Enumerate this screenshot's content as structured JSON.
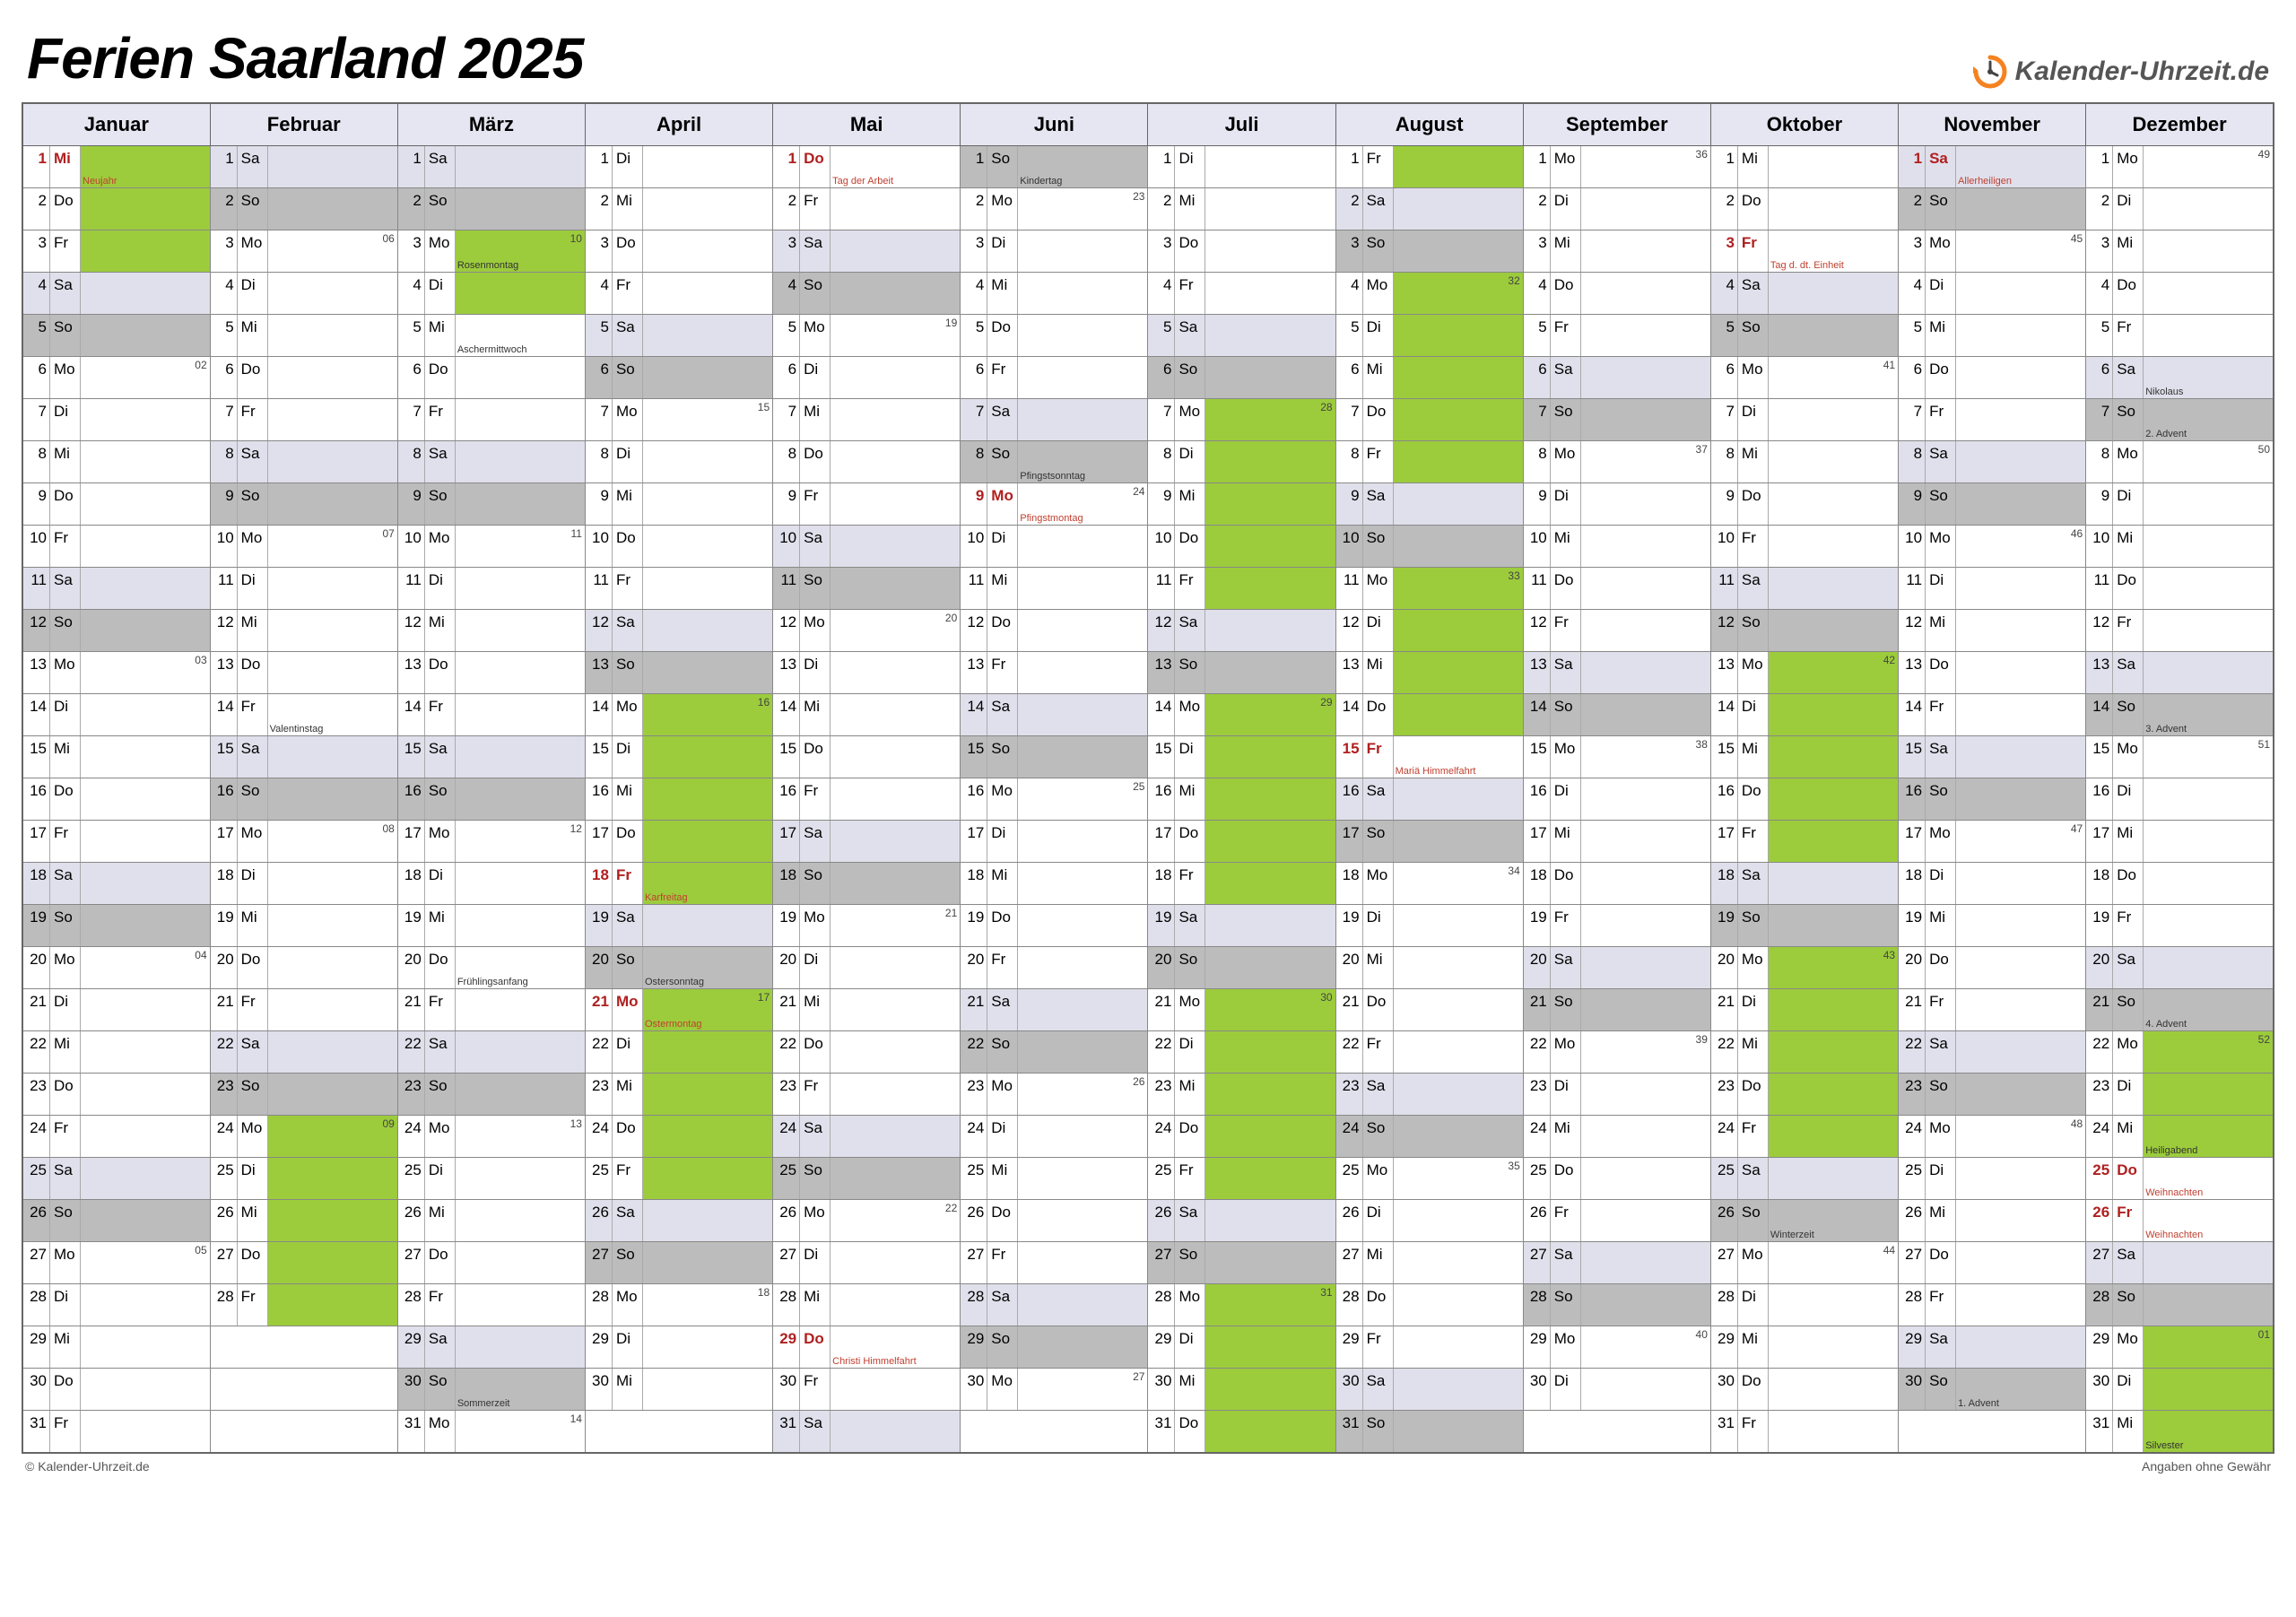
{
  "title": "Ferien Saarland 2025",
  "logo_text": "Kalender-Uhrzeit.de",
  "footer_left": "© Kalender-Uhrzeit.de",
  "footer_right": "Angaben ohne Gewähr",
  "colors": {
    "holiday_green": "#9ccc3c",
    "sunday_grey": "#bcbcbc",
    "saturday_lavender": "#e0e0ec",
    "header_bg": "#e6e6f2",
    "public_holiday_text": "#b02020",
    "note_red": "#c04030",
    "border": "#666666"
  },
  "months": [
    "Januar",
    "Februar",
    "März",
    "April",
    "Mai",
    "Juni",
    "Juli",
    "August",
    "September",
    "Oktober",
    "November",
    "Dezember"
  ],
  "days_in_month": [
    31,
    28,
    31,
    30,
    31,
    30,
    31,
    31,
    30,
    31,
    30,
    31
  ],
  "first_weekday": [
    3,
    6,
    6,
    2,
    4,
    7,
    2,
    5,
    1,
    3,
    6,
    1
  ],
  "weekday_abbr": {
    "1": "Mo",
    "2": "Di",
    "3": "Mi",
    "4": "Do",
    "5": "Fr",
    "6": "Sa",
    "7": "So"
  },
  "holidays_green": {
    "1": [
      1,
      2,
      3
    ],
    "2": [
      24,
      25,
      26,
      27,
      28
    ],
    "3": [
      3,
      4
    ],
    "4": [
      14,
      15,
      16,
      17,
      18,
      21,
      22,
      23,
      24,
      25
    ],
    "5": [],
    "6": [],
    "7": [
      7,
      8,
      9,
      10,
      11,
      14,
      15,
      16,
      17,
      18,
      21,
      22,
      23,
      24,
      25,
      28,
      29,
      30,
      31
    ],
    "8": [
      1,
      4,
      5,
      6,
      7,
      8,
      11,
      12,
      13,
      14
    ],
    "9": [],
    "10": [
      13,
      14,
      15,
      16,
      17,
      20,
      21,
      22,
      23,
      24
    ],
    "11": [],
    "12": [
      22,
      23,
      24,
      29,
      30,
      31
    ]
  },
  "public_holidays_red": {
    "1": [
      1
    ],
    "4": [
      18,
      21
    ],
    "5": [
      1,
      29
    ],
    "6": [
      9
    ],
    "8": [
      15
    ],
    "10": [
      3
    ],
    "11": [
      1
    ],
    "12": [
      25,
      26
    ]
  },
  "notes": {
    "1-1": {
      "t": "Neujahr",
      "c": "red"
    },
    "2-14": {
      "t": "Valentinstag",
      "c": "black"
    },
    "3-3": {
      "t": "Rosenmontag",
      "c": "black"
    },
    "3-5": {
      "t": "Aschermittwoch",
      "c": "black"
    },
    "3-20": {
      "t": "Frühlingsanfang",
      "c": "black"
    },
    "3-30": {
      "t": "Sommerzeit",
      "c": "black"
    },
    "4-18": {
      "t": "Karfreitag",
      "c": "red"
    },
    "4-20": {
      "t": "Ostersonntag",
      "c": "black"
    },
    "4-21": {
      "t": "Ostermontag",
      "c": "red"
    },
    "5-1": {
      "t": "Tag der Arbeit",
      "c": "red"
    },
    "5-29": {
      "t": "Christi Himmelfahrt",
      "c": "red"
    },
    "6-1": {
      "t": "Kindertag",
      "c": "black"
    },
    "6-8": {
      "t": "Pfingstsonntag",
      "c": "black"
    },
    "6-9": {
      "t": "Pfingstmontag",
      "c": "red"
    },
    "8-15": {
      "t": "Mariä Himmelfahrt",
      "c": "red"
    },
    "10-3": {
      "t": "Tag d. dt. Einheit",
      "c": "red"
    },
    "10-26": {
      "t": "Winterzeit",
      "c": "black"
    },
    "11-1": {
      "t": "Allerheiligen",
      "c": "red"
    },
    "11-30": {
      "t": "1. Advent",
      "c": "black"
    },
    "12-6": {
      "t": "Nikolaus",
      "c": "black"
    },
    "12-7": {
      "t": "2. Advent",
      "c": "black"
    },
    "12-14": {
      "t": "3. Advent",
      "c": "black"
    },
    "12-21": {
      "t": "4. Advent",
      "c": "black"
    },
    "12-24": {
      "t": "Heiligabend",
      "c": "black"
    },
    "12-25": {
      "t": "Weihnachten",
      "c": "red"
    },
    "12-26": {
      "t": "Weihnachten",
      "c": "red"
    },
    "12-31": {
      "t": "Silvester",
      "c": "black"
    }
  },
  "week_numbers": {
    "1-6": "02",
    "1-13": "03",
    "1-20": "04",
    "1-27": "05",
    "2-3": "06",
    "2-10": "07",
    "2-17": "08",
    "2-24": "09",
    "3-3": "10",
    "3-10": "11",
    "3-17": "12",
    "3-24": "13",
    "3-31": "14",
    "4-7": "15",
    "4-14": "16",
    "4-21": "17",
    "4-28": "18",
    "5-5": "19",
    "5-12": "20",
    "5-19": "21",
    "5-26": "22",
    "6-2": "23",
    "6-9": "24",
    "6-16": "25",
    "6-23": "26",
    "6-30": "27",
    "7-7": "28",
    "7-14": "29",
    "7-21": "30",
    "7-28": "31",
    "8-4": "32",
    "8-11": "33",
    "8-18": "34",
    "8-25": "35",
    "9-1": "36",
    "9-8": "37",
    "9-15": "38",
    "9-22": "39",
    "9-29": "40",
    "10-6": "41",
    "10-13": "42",
    "10-20": "43",
    "10-27": "44",
    "11-3": "45",
    "11-10": "46",
    "11-17": "47",
    "11-24": "48",
    "12-1": "49",
    "12-8": "50",
    "12-15": "51",
    "12-22": "52",
    "12-29": "01"
  },
  "typography": {
    "title_fontsize": 64,
    "header_fontsize": 22,
    "day_fontsize": 17,
    "note_fontsize": 11
  }
}
